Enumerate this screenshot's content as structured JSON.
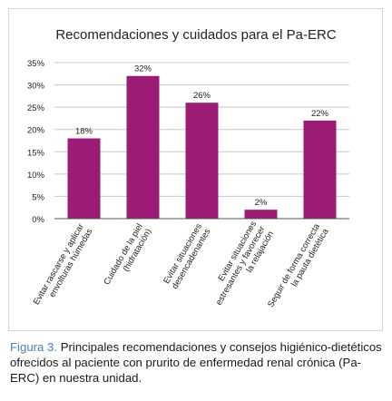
{
  "caption": {
    "figure_label": "Figura 3.",
    "text": " Principales recomendaciones y consejos higiénico-dietéticos ofrecidos al paciente con prurito de enfermedad renal crónica (Pa-ERC) en nuestra unidad."
  },
  "colors": {
    "bar": "#9b1b75",
    "grid": "#c8c8c8",
    "axis": "#555555",
    "text": "#222222"
  },
  "chart_data": {
    "type": "bar",
    "title": "Recomendaciones y cuidados para el Pa-ERC",
    "categories": [
      [
        "Evitar rascarse y aplicar",
        "envolturas húmedas"
      ],
      [
        "Cuidado de la piel",
        "(hidratación)"
      ],
      [
        "Evitar situaciones",
        "desencadenantes"
      ],
      [
        "Evitar situaciones",
        "estresantes y favorecer",
        "la relajación"
      ],
      [
        "Seguir de forma correcta",
        "la pauta dietética"
      ]
    ],
    "values": [
      18,
      32,
      26,
      2,
      22
    ],
    "data_labels": [
      "18%",
      "32%",
      "26%",
      "2%",
      "22%"
    ],
    "yticks": [
      "0%",
      "5%",
      "10%",
      "15%",
      "20%",
      "25%",
      "30%",
      "35%"
    ],
    "ylim": [
      0,
      35
    ],
    "grid": true,
    "legend": "none"
  }
}
